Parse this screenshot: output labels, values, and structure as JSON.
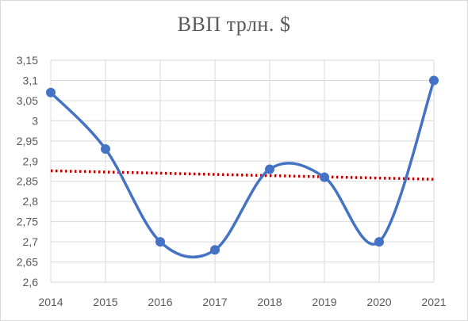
{
  "chart_data": {
    "type": "line",
    "title": "ВВП трлн. $",
    "xlabel": "",
    "ylabel": "",
    "categories": [
      "2014",
      "2015",
      "2016",
      "2017",
      "2018",
      "2019",
      "2020",
      "2021"
    ],
    "series": [
      {
        "name": "",
        "values": [
          3.07,
          2.93,
          2.7,
          2.68,
          2.88,
          2.86,
          2.7,
          3.1
        ],
        "color": "#4472c4",
        "smooth": true,
        "markers": true
      }
    ],
    "trendline": {
      "type": "linear",
      "start": 2.876,
      "end": 2.855,
      "color": "#c00000",
      "style": "dotted"
    },
    "ylim": [
      2.6,
      3.15
    ],
    "ystep": 0.05,
    "ytick_labels": [
      "2,6",
      "2,65",
      "2,7",
      "2,75",
      "2,8",
      "2,85",
      "2,9",
      "2,95",
      "3",
      "3,05",
      "3,1",
      "3,15"
    ],
    "grid": true,
    "legend": "none"
  }
}
